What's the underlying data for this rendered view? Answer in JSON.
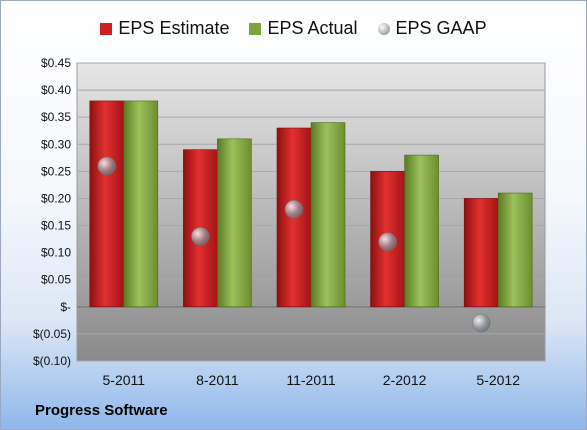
{
  "chart_data": {
    "type": "bar",
    "categories": [
      "5-2011",
      "8-2011",
      "11-2011",
      "2-2012",
      "5-2012"
    ],
    "series": [
      {
        "name": "EPS Estimate",
        "kind": "bar",
        "color": "#cc1f1f",
        "values": [
          0.38,
          0.29,
          0.33,
          0.25,
          0.2
        ]
      },
      {
        "name": "EPS Actual",
        "kind": "bar",
        "color": "#7ea43c",
        "values": [
          0.38,
          0.31,
          0.34,
          0.28,
          0.21
        ]
      },
      {
        "name": "EPS GAAP",
        "kind": "marker",
        "color": "#9aa2ac",
        "values": [
          0.26,
          0.13,
          0.18,
          0.12,
          -0.03
        ]
      }
    ],
    "yticks": [
      0.45,
      0.4,
      0.35,
      0.3,
      0.25,
      0.2,
      0.15,
      0.1,
      0.05,
      0,
      -0.05,
      -0.1
    ],
    "ytick_labels": [
      "$0.45",
      "$0.40",
      "$0.35",
      "$0.30",
      "$0.25",
      "$0.20",
      "$0.15",
      "$0.10",
      "$0.05",
      "$-",
      "$(0.05)",
      "$(0.10)"
    ],
    "ylim": [
      -0.1,
      0.45
    ],
    "legend_position": "top",
    "grid": true,
    "title": "",
    "xlabel": "",
    "ylabel": ""
  },
  "caption": "Progress Software"
}
